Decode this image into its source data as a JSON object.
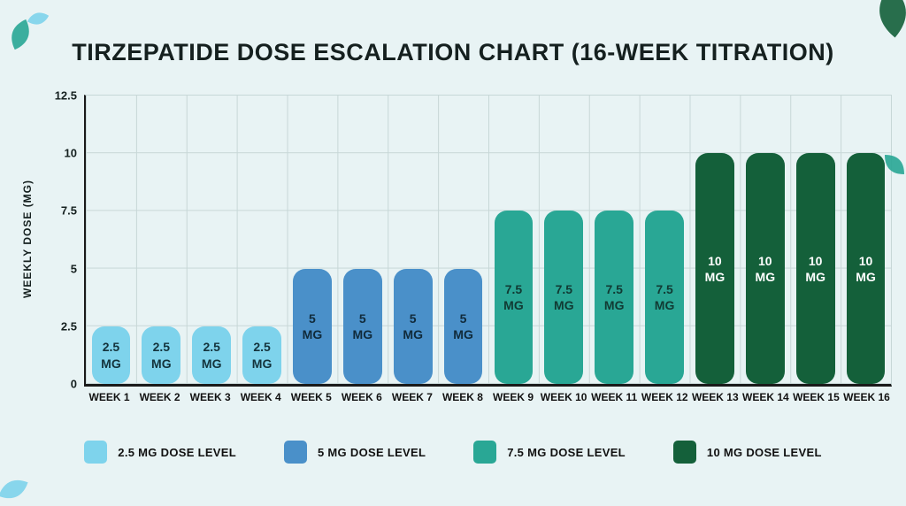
{
  "title": "TIRZEPATIDE DOSE ESCALATION CHART (16-WEEK TITRATION)",
  "colors": {
    "background": "#e8f3f4",
    "grid": "#c7d7d7",
    "axis": "#1a1a1a"
  },
  "chart_data": {
    "type": "bar",
    "title": "TIRZEPATIDE DOSE ESCALATION CHART (16-WEEK TITRATION)",
    "categories": [
      "WEEK 1",
      "WEEK 2",
      "WEEK 3",
      "WEEK 4",
      "WEEK 5",
      "WEEK 6",
      "WEEK 7",
      "WEEK 8",
      "WEEK 9",
      "WEEK 10",
      "WEEK 11",
      "WEEK 12",
      "WEEK 13",
      "WEEK 14",
      "WEEK 15",
      "WEEK 16"
    ],
    "values": [
      2.5,
      2.5,
      2.5,
      2.5,
      5,
      5,
      5,
      5,
      7.5,
      7.5,
      7.5,
      7.5,
      10,
      10,
      10,
      10
    ],
    "xlabel": "",
    "ylabel": "WEEKLY DOSE (MG)",
    "ylim": [
      0,
      12.5
    ],
    "yticks": [
      0,
      2.5,
      5,
      7.5,
      10,
      12.5
    ],
    "grid": true,
    "legend_position": "bottom",
    "groups": [
      {
        "value": 2.5,
        "label_lines": [
          "2.5",
          "MG"
        ],
        "color": "#7ed3ec",
        "label_color": "#14333c",
        "legend_label": "2.5 MG DOSE LEVEL"
      },
      {
        "value": 5,
        "label_lines": [
          "5",
          "MG"
        ],
        "color": "#4a90c9",
        "label_color": "#102a3a",
        "legend_label": "5 MG DOSE LEVEL"
      },
      {
        "value": 7.5,
        "label_lines": [
          "7.5",
          "MG"
        ],
        "color": "#29a795",
        "label_color": "#113a33",
        "legend_label": "7.5 MG DOSE LEVEL"
      },
      {
        "value": 10,
        "label_lines": [
          "10",
          "MG"
        ],
        "color": "#14603a",
        "label_color": "#ffffff",
        "legend_label": "10 MG DOSE LEVEL"
      }
    ]
  }
}
